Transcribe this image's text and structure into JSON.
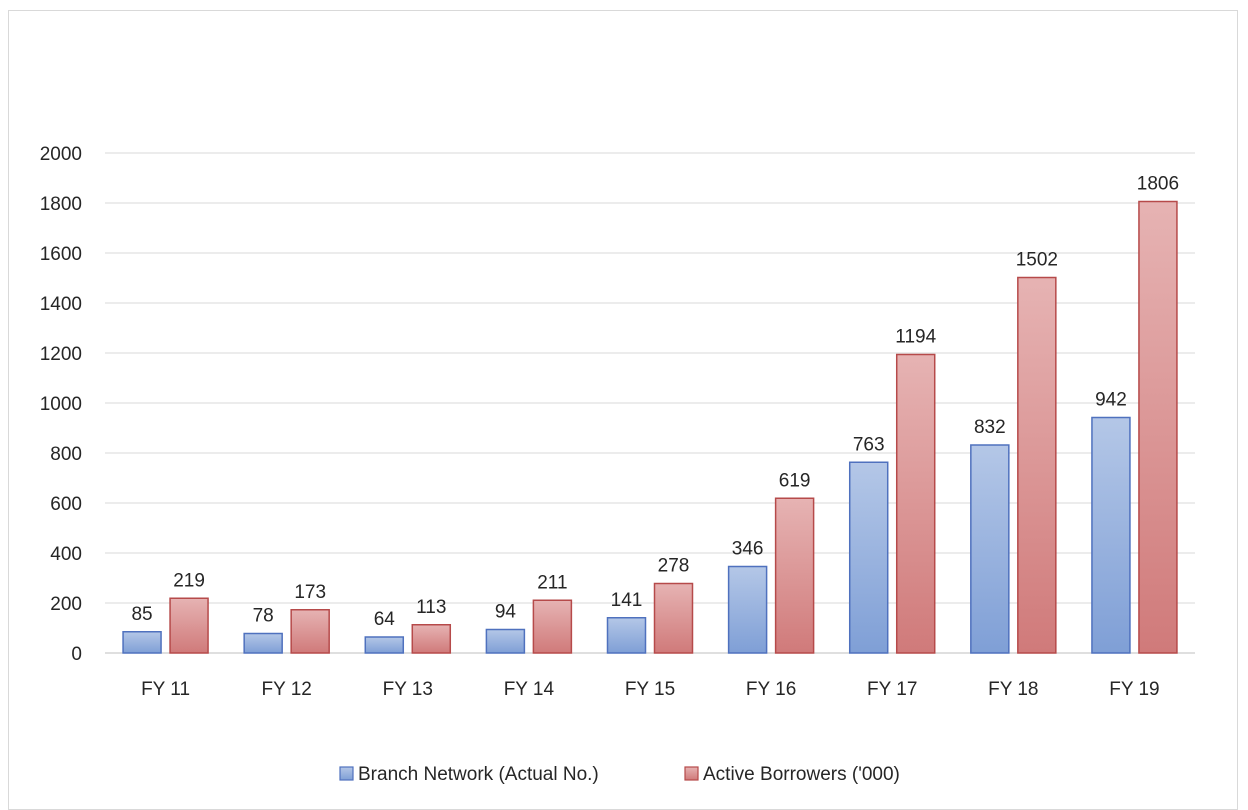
{
  "chart_data": {
    "type": "bar",
    "categories": [
      "FY 11",
      "FY 12",
      "FY 13",
      "FY 14",
      "FY 15",
      "FY 16",
      "FY 17",
      "FY 18",
      "FY 19"
    ],
    "series": [
      {
        "name": "Branch Network (Actual No.)",
        "values": [
          85,
          78,
          64,
          94,
          141,
          346,
          763,
          832,
          942
        ],
        "color": "#8eaadb"
      },
      {
        "name": "Active Borrowers ('000)",
        "values": [
          219,
          173,
          113,
          211,
          278,
          619,
          1194,
          1502,
          1806
        ],
        "color": "#d98b8b"
      }
    ],
    "yticks": [
      0,
      200,
      400,
      600,
      800,
      1000,
      1200,
      1400,
      1600,
      1800,
      2000
    ],
    "ylim": [
      0,
      2000
    ],
    "grid": true,
    "data_labels": true,
    "legend_position": "bottom"
  }
}
